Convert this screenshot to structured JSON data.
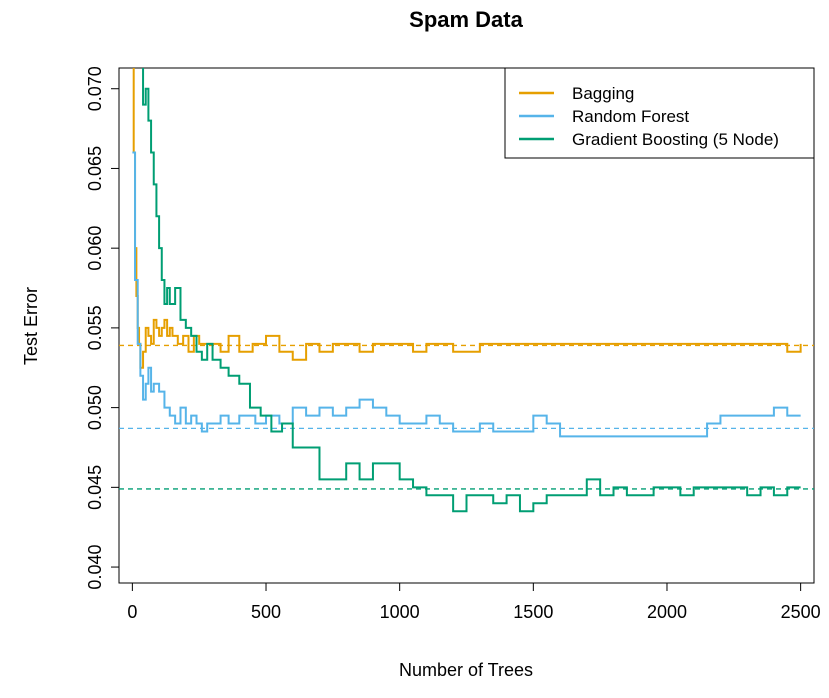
{
  "chart_data": {
    "type": "line",
    "title": "Spam Data",
    "xlabel": "Number of Trees",
    "ylabel": "Test Error",
    "xlim": [
      -50,
      2550
    ],
    "ylim": [
      0.039,
      0.0713
    ],
    "xticks": [
      0,
      500,
      1000,
      1500,
      2000,
      2500
    ],
    "xtick_labels": [
      "0",
      "500",
      "1000",
      "1500",
      "2000",
      "2500"
    ],
    "yticks": [
      0.04,
      0.045,
      0.05,
      0.055,
      0.06,
      0.065,
      0.07
    ],
    "ytick_labels": [
      "0.040",
      "0.045",
      "0.050",
      "0.055",
      "0.060",
      "0.065",
      "0.070"
    ],
    "grid": false,
    "legend_position": "top-right",
    "colors": {
      "bagging": "#E69F00",
      "random_forest": "#56B4E9",
      "boosting": "#009E73"
    },
    "series": [
      {
        "name": "Bagging",
        "color": "#E69F00",
        "hline": 0.0539,
        "x": [
          0,
          5,
          10,
          15,
          20,
          25,
          30,
          40,
          50,
          60,
          70,
          80,
          90,
          100,
          110,
          120,
          130,
          140,
          150,
          170,
          190,
          210,
          230,
          250,
          270,
          300,
          330,
          360,
          400,
          450,
          500,
          550,
          600,
          650,
          700,
          750,
          800,
          850,
          900,
          950,
          1000,
          1050,
          1100,
          1150,
          1200,
          1300,
          1400,
          1500,
          1600,
          1700,
          1800,
          1900,
          2000,
          2100,
          2200,
          2300,
          2400,
          2450,
          2500
        ],
        "y": [
          0.0715,
          0.066,
          0.06,
          0.057,
          0.055,
          0.054,
          0.0525,
          0.0535,
          0.055,
          0.0545,
          0.054,
          0.0555,
          0.055,
          0.0545,
          0.055,
          0.0555,
          0.0545,
          0.055,
          0.0545,
          0.054,
          0.0545,
          0.0535,
          0.0545,
          0.054,
          0.054,
          0.054,
          0.0535,
          0.0545,
          0.0535,
          0.054,
          0.0545,
          0.0535,
          0.053,
          0.054,
          0.0535,
          0.054,
          0.054,
          0.0535,
          0.054,
          0.054,
          0.054,
          0.0535,
          0.054,
          0.054,
          0.0535,
          0.054,
          0.054,
          0.054,
          0.054,
          0.054,
          0.054,
          0.054,
          0.054,
          0.054,
          0.054,
          0.054,
          0.054,
          0.0535,
          0.054
        ]
      },
      {
        "name": "Random Forest",
        "color": "#56B4E9",
        "hline": 0.0487,
        "x": [
          0,
          10,
          20,
          30,
          40,
          50,
          60,
          70,
          80,
          100,
          120,
          140,
          160,
          180,
          200,
          220,
          240,
          260,
          280,
          300,
          330,
          360,
          400,
          430,
          460,
          500,
          550,
          600,
          650,
          700,
          750,
          800,
          850,
          900,
          950,
          1000,
          1050,
          1100,
          1150,
          1200,
          1250,
          1300,
          1350,
          1400,
          1450,
          1500,
          1550,
          1600,
          1700,
          1800,
          1900,
          2000,
          2100,
          2150,
          2200,
          2300,
          2400,
          2450,
          2500
        ],
        "y": [
          0.066,
          0.058,
          0.054,
          0.052,
          0.0505,
          0.0515,
          0.0525,
          0.051,
          0.0515,
          0.051,
          0.05,
          0.0495,
          0.049,
          0.05,
          0.049,
          0.0495,
          0.049,
          0.0485,
          0.049,
          0.049,
          0.0495,
          0.049,
          0.0495,
          0.0495,
          0.049,
          0.0495,
          0.049,
          0.05,
          0.0495,
          0.05,
          0.0495,
          0.05,
          0.0505,
          0.05,
          0.0495,
          0.049,
          0.049,
          0.0495,
          0.049,
          0.0485,
          0.0485,
          0.049,
          0.0485,
          0.0485,
          0.0485,
          0.0495,
          0.049,
          0.0482,
          0.0482,
          0.0482,
          0.0482,
          0.0482,
          0.0482,
          0.049,
          0.0495,
          0.0495,
          0.05,
          0.0495,
          0.0495
        ]
      },
      {
        "name": "Gradient Boosting (5 Node)",
        "color": "#009E73",
        "hline": 0.0449,
        "x": [
          30,
          40,
          50,
          60,
          70,
          80,
          90,
          100,
          110,
          120,
          130,
          140,
          160,
          180,
          200,
          220,
          240,
          260,
          280,
          300,
          330,
          360,
          400,
          440,
          480,
          520,
          560,
          600,
          650,
          700,
          750,
          800,
          850,
          900,
          950,
          1000,
          1050,
          1100,
          1150,
          1200,
          1250,
          1300,
          1350,
          1400,
          1450,
          1500,
          1550,
          1600,
          1650,
          1700,
          1750,
          1800,
          1850,
          1900,
          1950,
          2000,
          2050,
          2100,
          2150,
          2200,
          2250,
          2300,
          2350,
          2400,
          2450,
          2500
        ],
        "y": [
          0.0715,
          0.069,
          0.07,
          0.068,
          0.066,
          0.064,
          0.062,
          0.06,
          0.058,
          0.0565,
          0.0575,
          0.0565,
          0.0575,
          0.0555,
          0.055,
          0.0545,
          0.0535,
          0.053,
          0.054,
          0.053,
          0.0525,
          0.052,
          0.0515,
          0.05,
          0.0495,
          0.0485,
          0.049,
          0.0475,
          0.0475,
          0.0455,
          0.0455,
          0.0465,
          0.0455,
          0.0465,
          0.0465,
          0.0455,
          0.045,
          0.0445,
          0.0445,
          0.0435,
          0.0445,
          0.0445,
          0.044,
          0.0445,
          0.0435,
          0.044,
          0.0445,
          0.0445,
          0.0445,
          0.0455,
          0.0445,
          0.045,
          0.0445,
          0.0445,
          0.045,
          0.045,
          0.0445,
          0.045,
          0.045,
          0.045,
          0.045,
          0.0445,
          0.045,
          0.0445,
          0.045,
          0.045
        ]
      }
    ]
  }
}
